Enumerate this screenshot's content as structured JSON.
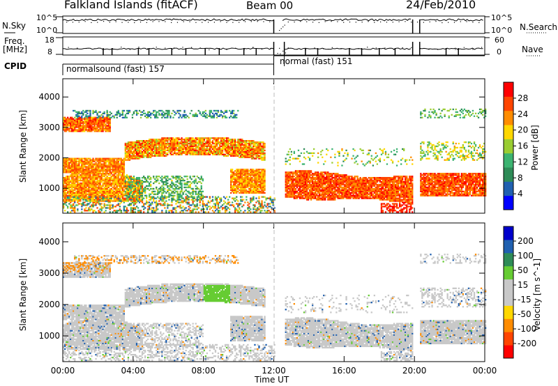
{
  "header": {
    "title": "Falkland Islands (fitACF)",
    "beam": "Beam 00",
    "date": "24/Feb/2010"
  },
  "left_labels": {
    "nsky": "N.Sky",
    "freq_top": "Freq.",
    "freq_unit": "[MHz]",
    "cpid": "CPID"
  },
  "right_labels": {
    "nsearch": "N.Search",
    "nave": "Nave"
  },
  "noise_panel": {
    "left_ticks": [
      "10^5",
      "10^0"
    ],
    "right_ticks": [
      "10^5",
      "10^0"
    ]
  },
  "freq_panel": {
    "left_ticks": [
      "18",
      "8"
    ],
    "right_ticks": [
      "60",
      "0"
    ]
  },
  "cpid_panel": {
    "segment1": "normalsound (fast) 157",
    "segment2": "normal (fast) 151"
  },
  "colors": {
    "power_scale": [
      "#0000ff",
      "#2060b0",
      "#2e8b57",
      "#3cb371",
      "#9acd32",
      "#ffd700",
      "#ff8c00",
      "#ff4500",
      "#ff0000"
    ],
    "velocity_scale": [
      "#ff0000",
      "#ff4500",
      "#ff8c00",
      "#ffd700",
      "#c8c8c8",
      "#c8c8c8",
      "#66cc33",
      "#2e8b57",
      "#2060b0",
      "#0000cc"
    ]
  },
  "chart_data": [
    {
      "type": "heatmap",
      "panel": "power",
      "xlabel": "",
      "ylabel": "Slant Range [km]",
      "x_ticks": [
        "00:00",
        "04:00",
        "08:00",
        "12:00",
        "16:00",
        "20:00",
        "00:00"
      ],
      "y_ticks": [
        "1000",
        "2000",
        "3000",
        "4000"
      ],
      "xlim": [
        0,
        24
      ],
      "ylim": [
        180,
        4600
      ],
      "colorbar": {
        "label": "Power [dB]",
        "ticks": [
          "4",
          "8",
          "12",
          "16",
          "20",
          "24",
          "28"
        ],
        "range": [
          0,
          32
        ]
      }
    },
    {
      "type": "heatmap",
      "panel": "velocity",
      "xlabel": "Time UT",
      "ylabel": "Slant Range [km]",
      "x_ticks": [
        "00:00",
        "04:00",
        "08:00",
        "12:00",
        "16:00",
        "20:00",
        "00:00"
      ],
      "y_ticks": [
        "1000",
        "2000",
        "3000",
        "4000"
      ],
      "xlim": [
        0,
        24
      ],
      "ylim": [
        180,
        4600
      ],
      "colorbar": {
        "label": "Velocity [m s^-1]",
        "ticks": [
          "200",
          "100",
          "50",
          "15",
          "-15",
          "-50",
          "-100",
          "-200"
        ],
        "range": [
          -250,
          250
        ]
      }
    }
  ]
}
